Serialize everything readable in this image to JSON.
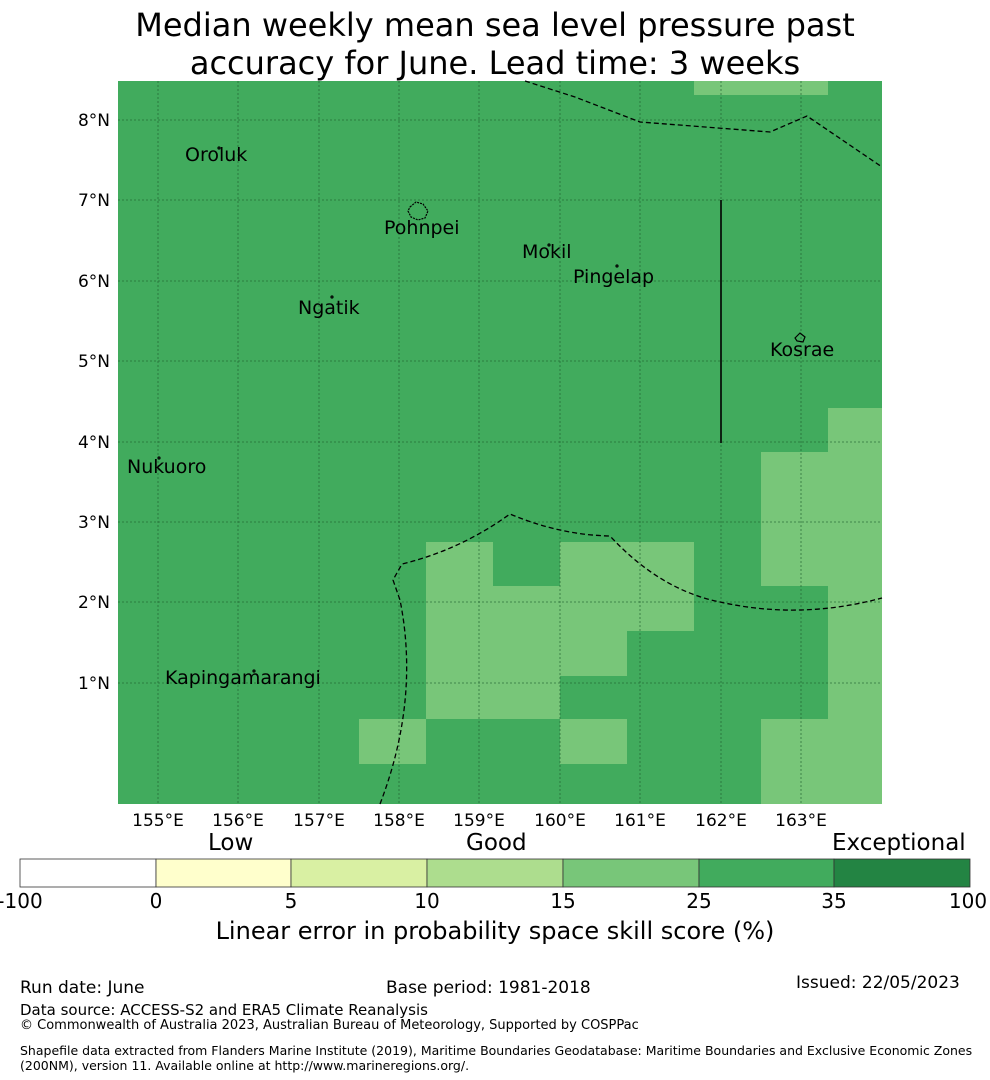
{
  "title_line1": "Median weekly mean sea level pressure past",
  "title_line2": "accuracy for June. Lead time: 3 weeks",
  "map": {
    "lon_ticks": [
      "155°E",
      "156°E",
      "157°E",
      "158°E",
      "159°E",
      "160°E",
      "161°E",
      "162°E",
      "163°E"
    ],
    "lat_ticks": [
      "8°N",
      "7°N",
      "6°N",
      "5°N",
      "4°N",
      "3°N",
      "2°N",
      "1°N"
    ],
    "places": [
      "Oroluk",
      "Pohnpei",
      "Mokil",
      "Pingelap",
      "Ngatik",
      "Kosrae",
      "Nukuoro",
      "Kapingamarangi"
    ],
    "colors": {
      "good_mid": "#41ab5d",
      "good_low": "#78c679",
      "exceptional": "#238443"
    }
  },
  "colorbar": {
    "categories": [
      "Low",
      "Good",
      "Exceptional"
    ],
    "ticks": [
      "-100",
      "0",
      "5",
      "10",
      "15",
      "25",
      "35",
      "100"
    ],
    "colors": [
      "#ffffff",
      "#ffffcc",
      "#d9f0a3",
      "#addd8e",
      "#78c679",
      "#41ab5d",
      "#238443"
    ],
    "label": "Linear error in probability space skill score (%)"
  },
  "footer": {
    "run_date": "Run date: June",
    "base_period": "Base period: 1981-2018",
    "issued": "Issued: 22/05/2023",
    "data_source": "Data source: ACCESS-S2 and ERA5 Climate Reanalysis",
    "copyright": "© Commonwealth of Australia 2023, Australian Bureau of Meteorology, Supported by COSPPac",
    "shapefile_line1": "Shapefile data extracted from Flanders Marine Institute (2019), Maritime Boundaries Geodatabase: Maritime Boundaries and Exclusive Economic Zones",
    "shapefile_line2": "(200NM), version 11. Available online at http://www.marineregions.org/."
  }
}
